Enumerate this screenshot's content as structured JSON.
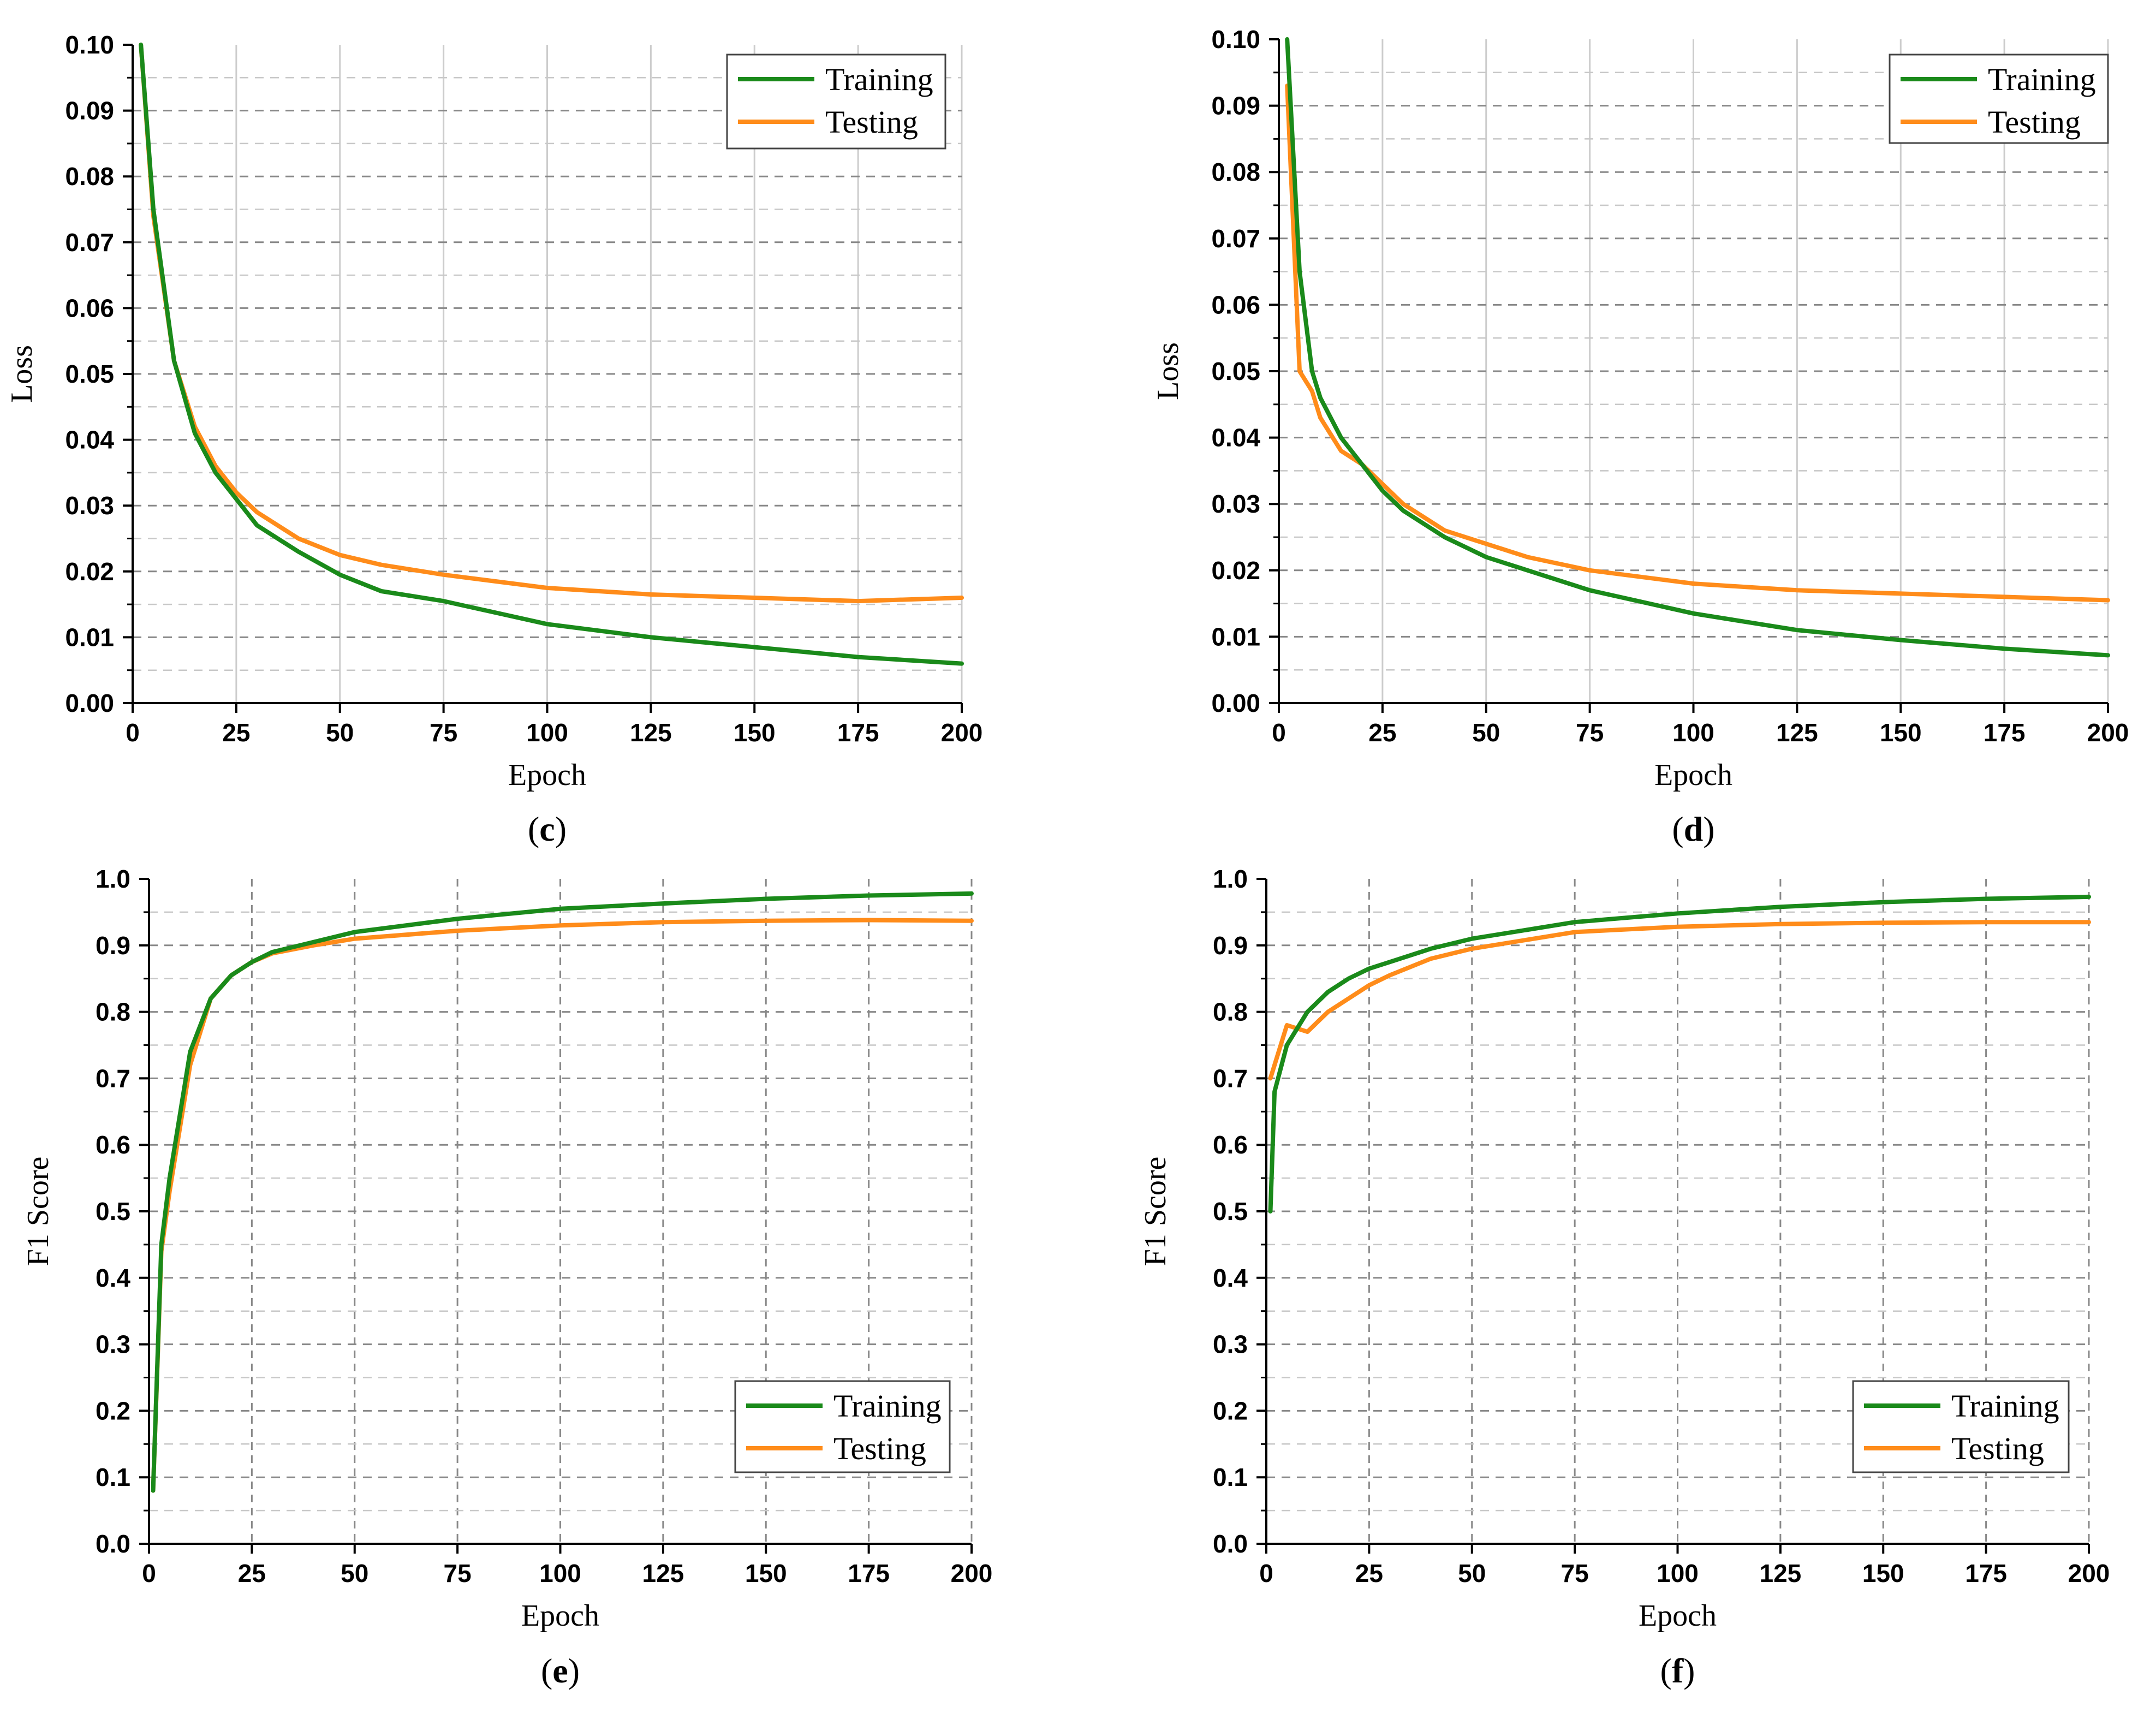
{
  "figure": {
    "colors": {
      "training": "#1a8a1a",
      "testing": "#ff8c1a",
      "axis": "#000000",
      "grid_major": "#888888",
      "grid_minor": "#c8c8c8",
      "grid_vertical": "#cccccc"
    }
  },
  "chart_data": [
    {
      "id": "c",
      "type": "line",
      "panel_label": "c",
      "xlabel": "Epoch",
      "ylabel": "Loss",
      "xlim": [
        0,
        200
      ],
      "ylim": [
        0,
        0.1
      ],
      "xticks": [
        0,
        25,
        50,
        75,
        100,
        125,
        150,
        175,
        200
      ],
      "yticks": [
        0.0,
        0.01,
        0.02,
        0.03,
        0.04,
        0.05,
        0.06,
        0.07,
        0.08,
        0.09,
        0.1
      ],
      "ytick_labels": [
        "0.00",
        "0.01",
        "0.02",
        "0.03",
        "0.04",
        "0.05",
        "0.06",
        "0.07",
        "0.08",
        "0.09",
        "0.10"
      ],
      "legend_position": "top-right",
      "x": [
        2,
        5,
        10,
        15,
        20,
        25,
        30,
        40,
        50,
        60,
        75,
        100,
        125,
        150,
        175,
        200
      ],
      "series": [
        {
          "name": "Training",
          "values": [
            0.1,
            0.075,
            0.052,
            0.041,
            0.035,
            0.031,
            0.027,
            0.023,
            0.0195,
            0.017,
            0.0155,
            0.012,
            0.01,
            0.0085,
            0.007,
            0.006
          ]
        },
        {
          "name": "Testing",
          "values": [
            0.1,
            0.074,
            0.052,
            0.042,
            0.036,
            0.032,
            0.029,
            0.025,
            0.0225,
            0.021,
            0.0195,
            0.0175,
            0.0165,
            0.016,
            0.0155,
            0.016
          ]
        }
      ]
    },
    {
      "id": "d",
      "type": "line",
      "panel_label": "d",
      "xlabel": "Epoch",
      "ylabel": "Loss",
      "xlim": [
        0,
        200
      ],
      "ylim": [
        0,
        0.1
      ],
      "xticks": [
        0,
        25,
        50,
        75,
        100,
        125,
        150,
        175,
        200
      ],
      "yticks": [
        0.0,
        0.01,
        0.02,
        0.03,
        0.04,
        0.05,
        0.06,
        0.07,
        0.08,
        0.09,
        0.1
      ],
      "ytick_labels": [
        "0.00",
        "0.01",
        "0.02",
        "0.03",
        "0.04",
        "0.05",
        "0.06",
        "0.07",
        "0.08",
        "0.09",
        "0.10"
      ],
      "legend_position": "top-right",
      "x": [
        2,
        5,
        8,
        10,
        15,
        20,
        25,
        30,
        40,
        50,
        60,
        75,
        100,
        125,
        150,
        175,
        200
      ],
      "series": [
        {
          "name": "Training",
          "values": [
            0.1,
            0.065,
            0.05,
            0.046,
            0.04,
            0.036,
            0.032,
            0.029,
            0.025,
            0.022,
            0.02,
            0.017,
            0.0135,
            0.011,
            0.0095,
            0.0082,
            0.0072
          ]
        },
        {
          "name": "Testing",
          "values": [
            0.093,
            0.05,
            0.047,
            0.043,
            0.038,
            0.036,
            0.033,
            0.03,
            0.026,
            0.024,
            0.022,
            0.02,
            0.018,
            0.017,
            0.0165,
            0.016,
            0.0155
          ]
        }
      ]
    },
    {
      "id": "e",
      "type": "line",
      "panel_label": "e",
      "xlabel": "Epoch",
      "ylabel": "F1 Score",
      "xlim": [
        0,
        200
      ],
      "ylim": [
        0,
        1.0
      ],
      "xticks": [
        0,
        25,
        50,
        75,
        100,
        125,
        150,
        175,
        200
      ],
      "yticks": [
        0.0,
        0.1,
        0.2,
        0.3,
        0.4,
        0.5,
        0.6,
        0.7,
        0.8,
        0.9,
        1.0
      ],
      "ytick_labels": [
        "0.0",
        "0.1",
        "0.2",
        "0.3",
        "0.4",
        "0.5",
        "0.6",
        "0.7",
        "0.8",
        "0.9",
        "1.0"
      ],
      "legend_position": "bottom-right",
      "x": [
        1,
        3,
        5,
        10,
        15,
        20,
        25,
        30,
        40,
        50,
        75,
        100,
        125,
        150,
        175,
        200
      ],
      "series": [
        {
          "name": "Training",
          "values": [
            0.08,
            0.45,
            0.55,
            0.74,
            0.82,
            0.855,
            0.875,
            0.89,
            0.905,
            0.92,
            0.94,
            0.955,
            0.963,
            0.97,
            0.975,
            0.978
          ]
        },
        {
          "name": "Testing",
          "values": [
            0.08,
            0.44,
            0.53,
            0.72,
            0.82,
            0.855,
            0.875,
            0.888,
            0.9,
            0.91,
            0.922,
            0.93,
            0.935,
            0.937,
            0.938,
            0.937
          ]
        }
      ]
    },
    {
      "id": "f",
      "type": "line",
      "panel_label": "f",
      "xlabel": "Epoch",
      "ylabel": "F1 Score",
      "xlim": [
        0,
        200
      ],
      "ylim": [
        0,
        1.0
      ],
      "xticks": [
        0,
        25,
        50,
        75,
        100,
        125,
        150,
        175,
        200
      ],
      "yticks": [
        0.0,
        0.1,
        0.2,
        0.3,
        0.4,
        0.5,
        0.6,
        0.7,
        0.8,
        0.9,
        1.0
      ],
      "ytick_labels": [
        "0.0",
        "0.1",
        "0.2",
        "0.3",
        "0.4",
        "0.5",
        "0.6",
        "0.7",
        "0.8",
        "0.9",
        "1.0"
      ],
      "legend_position": "bottom-right",
      "x": [
        1,
        2,
        5,
        10,
        15,
        20,
        25,
        30,
        40,
        50,
        75,
        100,
        125,
        150,
        175,
        200
      ],
      "series": [
        {
          "name": "Training",
          "values": [
            0.5,
            0.68,
            0.75,
            0.8,
            0.83,
            0.85,
            0.865,
            0.875,
            0.895,
            0.91,
            0.935,
            0.948,
            0.958,
            0.965,
            0.97,
            0.973
          ]
        },
        {
          "name": "Testing",
          "values": [
            0.7,
            0.72,
            0.78,
            0.77,
            0.8,
            0.82,
            0.84,
            0.855,
            0.88,
            0.895,
            0.92,
            0.928,
            0.932,
            0.934,
            0.935,
            0.935
          ]
        }
      ]
    }
  ]
}
